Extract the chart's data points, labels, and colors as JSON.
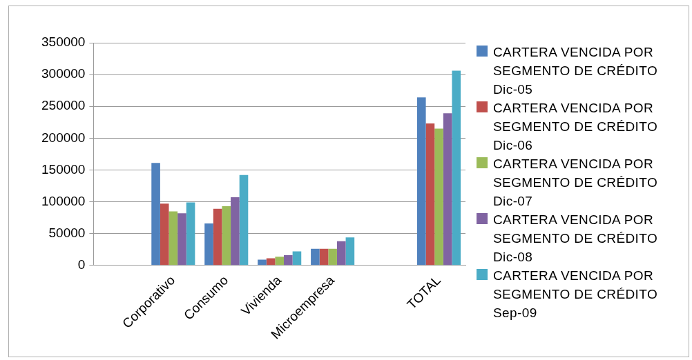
{
  "chart_data": {
    "type": "bar",
    "categories": [
      null,
      "Corporativo",
      "Consumo",
      "Vivienda",
      "Microempresa",
      null,
      "TOTAL"
    ],
    "series": [
      {
        "name": "CARTERA VENCIDA POR SEGMENTO DE CRÉDITO Dic-05",
        "color": "#4f81bd",
        "values": [
          null,
          161000,
          66000,
          9000,
          26000,
          null,
          264000
        ]
      },
      {
        "name": "CARTERA VENCIDA POR SEGMENTO DE CRÉDITO Dic-06",
        "color": "#c0504d",
        "values": [
          null,
          97000,
          89000,
          11000,
          26000,
          null,
          223000
        ]
      },
      {
        "name": "CARTERA VENCIDA POR SEGMENTO DE CRÉDITO Dic-07",
        "color": "#9bbb59",
        "values": [
          null,
          85000,
          93000,
          13500,
          26000,
          null,
          215000
        ]
      },
      {
        "name": "CARTERA VENCIDA POR SEGMENTO DE CRÉDITO Dic-08",
        "color": "#8064a2",
        "values": [
          null,
          82000,
          107000,
          16000,
          38000,
          null,
          239000
        ]
      },
      {
        "name": "CARTERA VENCIDA POR SEGMENTO DE CRÉDITO Sep-09",
        "color": "#4bacc6",
        "values": [
          null,
          99000,
          142000,
          22000,
          44000,
          null,
          306000
        ]
      }
    ],
    "ylim": [
      0,
      350000
    ],
    "yticks": [
      0,
      50000,
      100000,
      150000,
      200000,
      250000,
      300000,
      350000
    ],
    "grid": "y",
    "legend": "right"
  }
}
